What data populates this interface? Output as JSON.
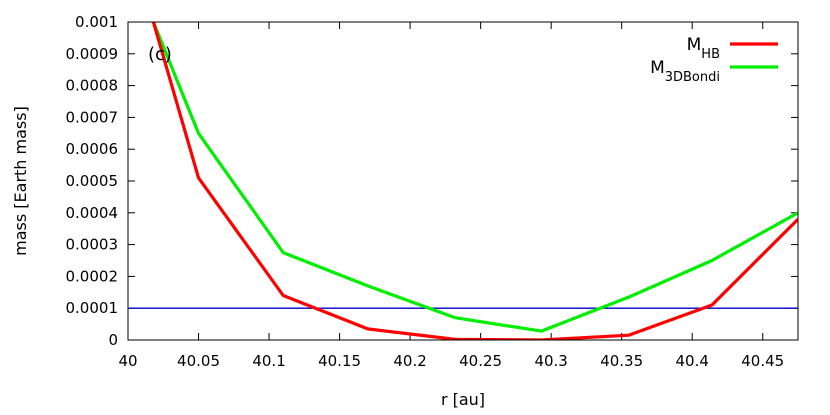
{
  "chart_data": {
    "type": "line",
    "panel_label": "(c)",
    "xlabel": "r [au]",
    "ylabel": "mass [Earth mass]",
    "xlim": [
      40.0,
      40.475
    ],
    "ylim": [
      0,
      0.001
    ],
    "x_ticks": [
      "40",
      "40.05",
      "40.1",
      "40.15",
      "40.2",
      "40.25",
      "40.3",
      "40.35",
      "40.4",
      "40.45"
    ],
    "y_ticks": [
      "0",
      "0.0001",
      "0.0002",
      "0.0003",
      "0.0004",
      "0.0005",
      "0.0006",
      "0.0007",
      "0.0008",
      "0.0009",
      "0.001"
    ],
    "legend_position": "top-right",
    "series": [
      {
        "name": "M",
        "name_sub": "HB",
        "color": "#ff0000",
        "x": [
          40.018,
          40.05,
          40.11,
          40.17,
          40.232,
          40.293,
          40.355,
          40.414,
          40.475
        ],
        "y": [
          0.001,
          0.00051,
          0.00014,
          3.5e-05,
          2e-06,
          0.0,
          1.5e-05,
          0.00011,
          0.00038
        ]
      },
      {
        "name": "M",
        "name_sub": "3DBondi",
        "color": "#00ee00",
        "x": [
          40.018,
          40.05,
          40.11,
          40.17,
          40.232,
          40.293,
          40.355,
          40.414,
          40.475
        ],
        "y": [
          0.001,
          0.00065,
          0.000275,
          0.00017,
          7e-05,
          2.8e-05,
          0.000135,
          0.00025,
          0.0004
        ]
      }
    ],
    "hline": {
      "y": 0.0001,
      "color": "#0000cc"
    }
  }
}
